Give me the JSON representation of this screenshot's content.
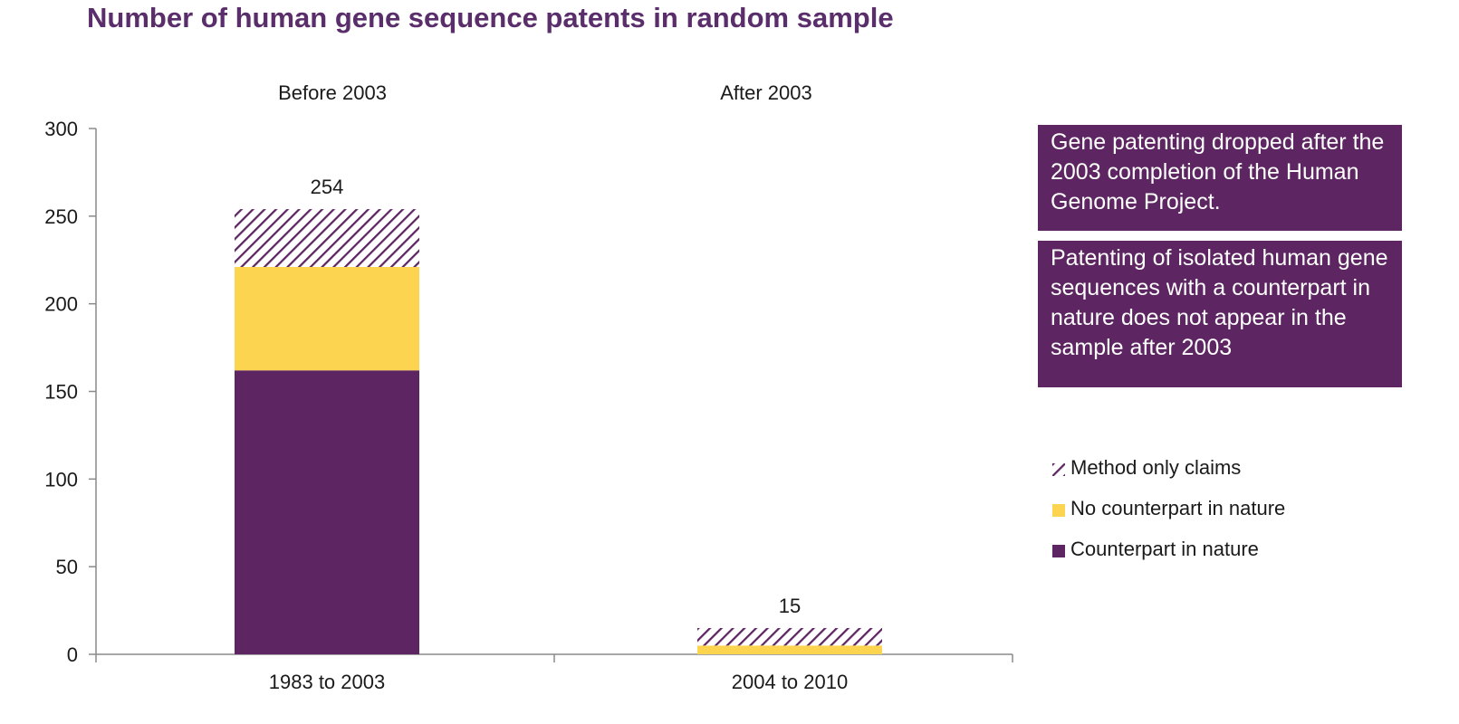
{
  "title": "Number of human gene sequence patents in random sample",
  "colors": {
    "counterpart": "#5d2561",
    "no_counterpart": "#fdd44f",
    "method_hatch": "#5d2561",
    "callout_bg": "#5d2561",
    "title": "#5a2d6b"
  },
  "callouts": [
    {
      "text": "Gene patenting dropped after the 2003 completion of the Human Genome Project."
    },
    {
      "text": "Patenting of isolated human gene sequences with a counterpart in nature does not appear in the sample after 2003"
    }
  ],
  "legend": [
    {
      "label": "Method only claims",
      "icon": "hatch-swatch"
    },
    {
      "label": "No counterpart in nature",
      "icon": "yellow-swatch"
    },
    {
      "label": "Counterpart in nature",
      "icon": "purple-swatch"
    }
  ],
  "chart_data": {
    "type": "bar",
    "stacked": true,
    "title": "Number of human gene sequence patents in random sample",
    "categories": [
      "1983 to 2003",
      "2004 to 2010"
    ],
    "group_labels": [
      "Before 2003",
      "After 2003"
    ],
    "totals": [
      254,
      15
    ],
    "series": [
      {
        "name": "Counterpart in nature",
        "values": [
          162,
          0
        ]
      },
      {
        "name": "No counterpart in nature",
        "values": [
          59,
          5
        ]
      },
      {
        "name": "Method only claims",
        "values": [
          33,
          10
        ]
      }
    ],
    "ylim": [
      0,
      300
    ],
    "yticks": [
      0,
      50,
      100,
      150,
      200,
      250,
      300
    ],
    "grid": false,
    "legend_position": "right"
  }
}
